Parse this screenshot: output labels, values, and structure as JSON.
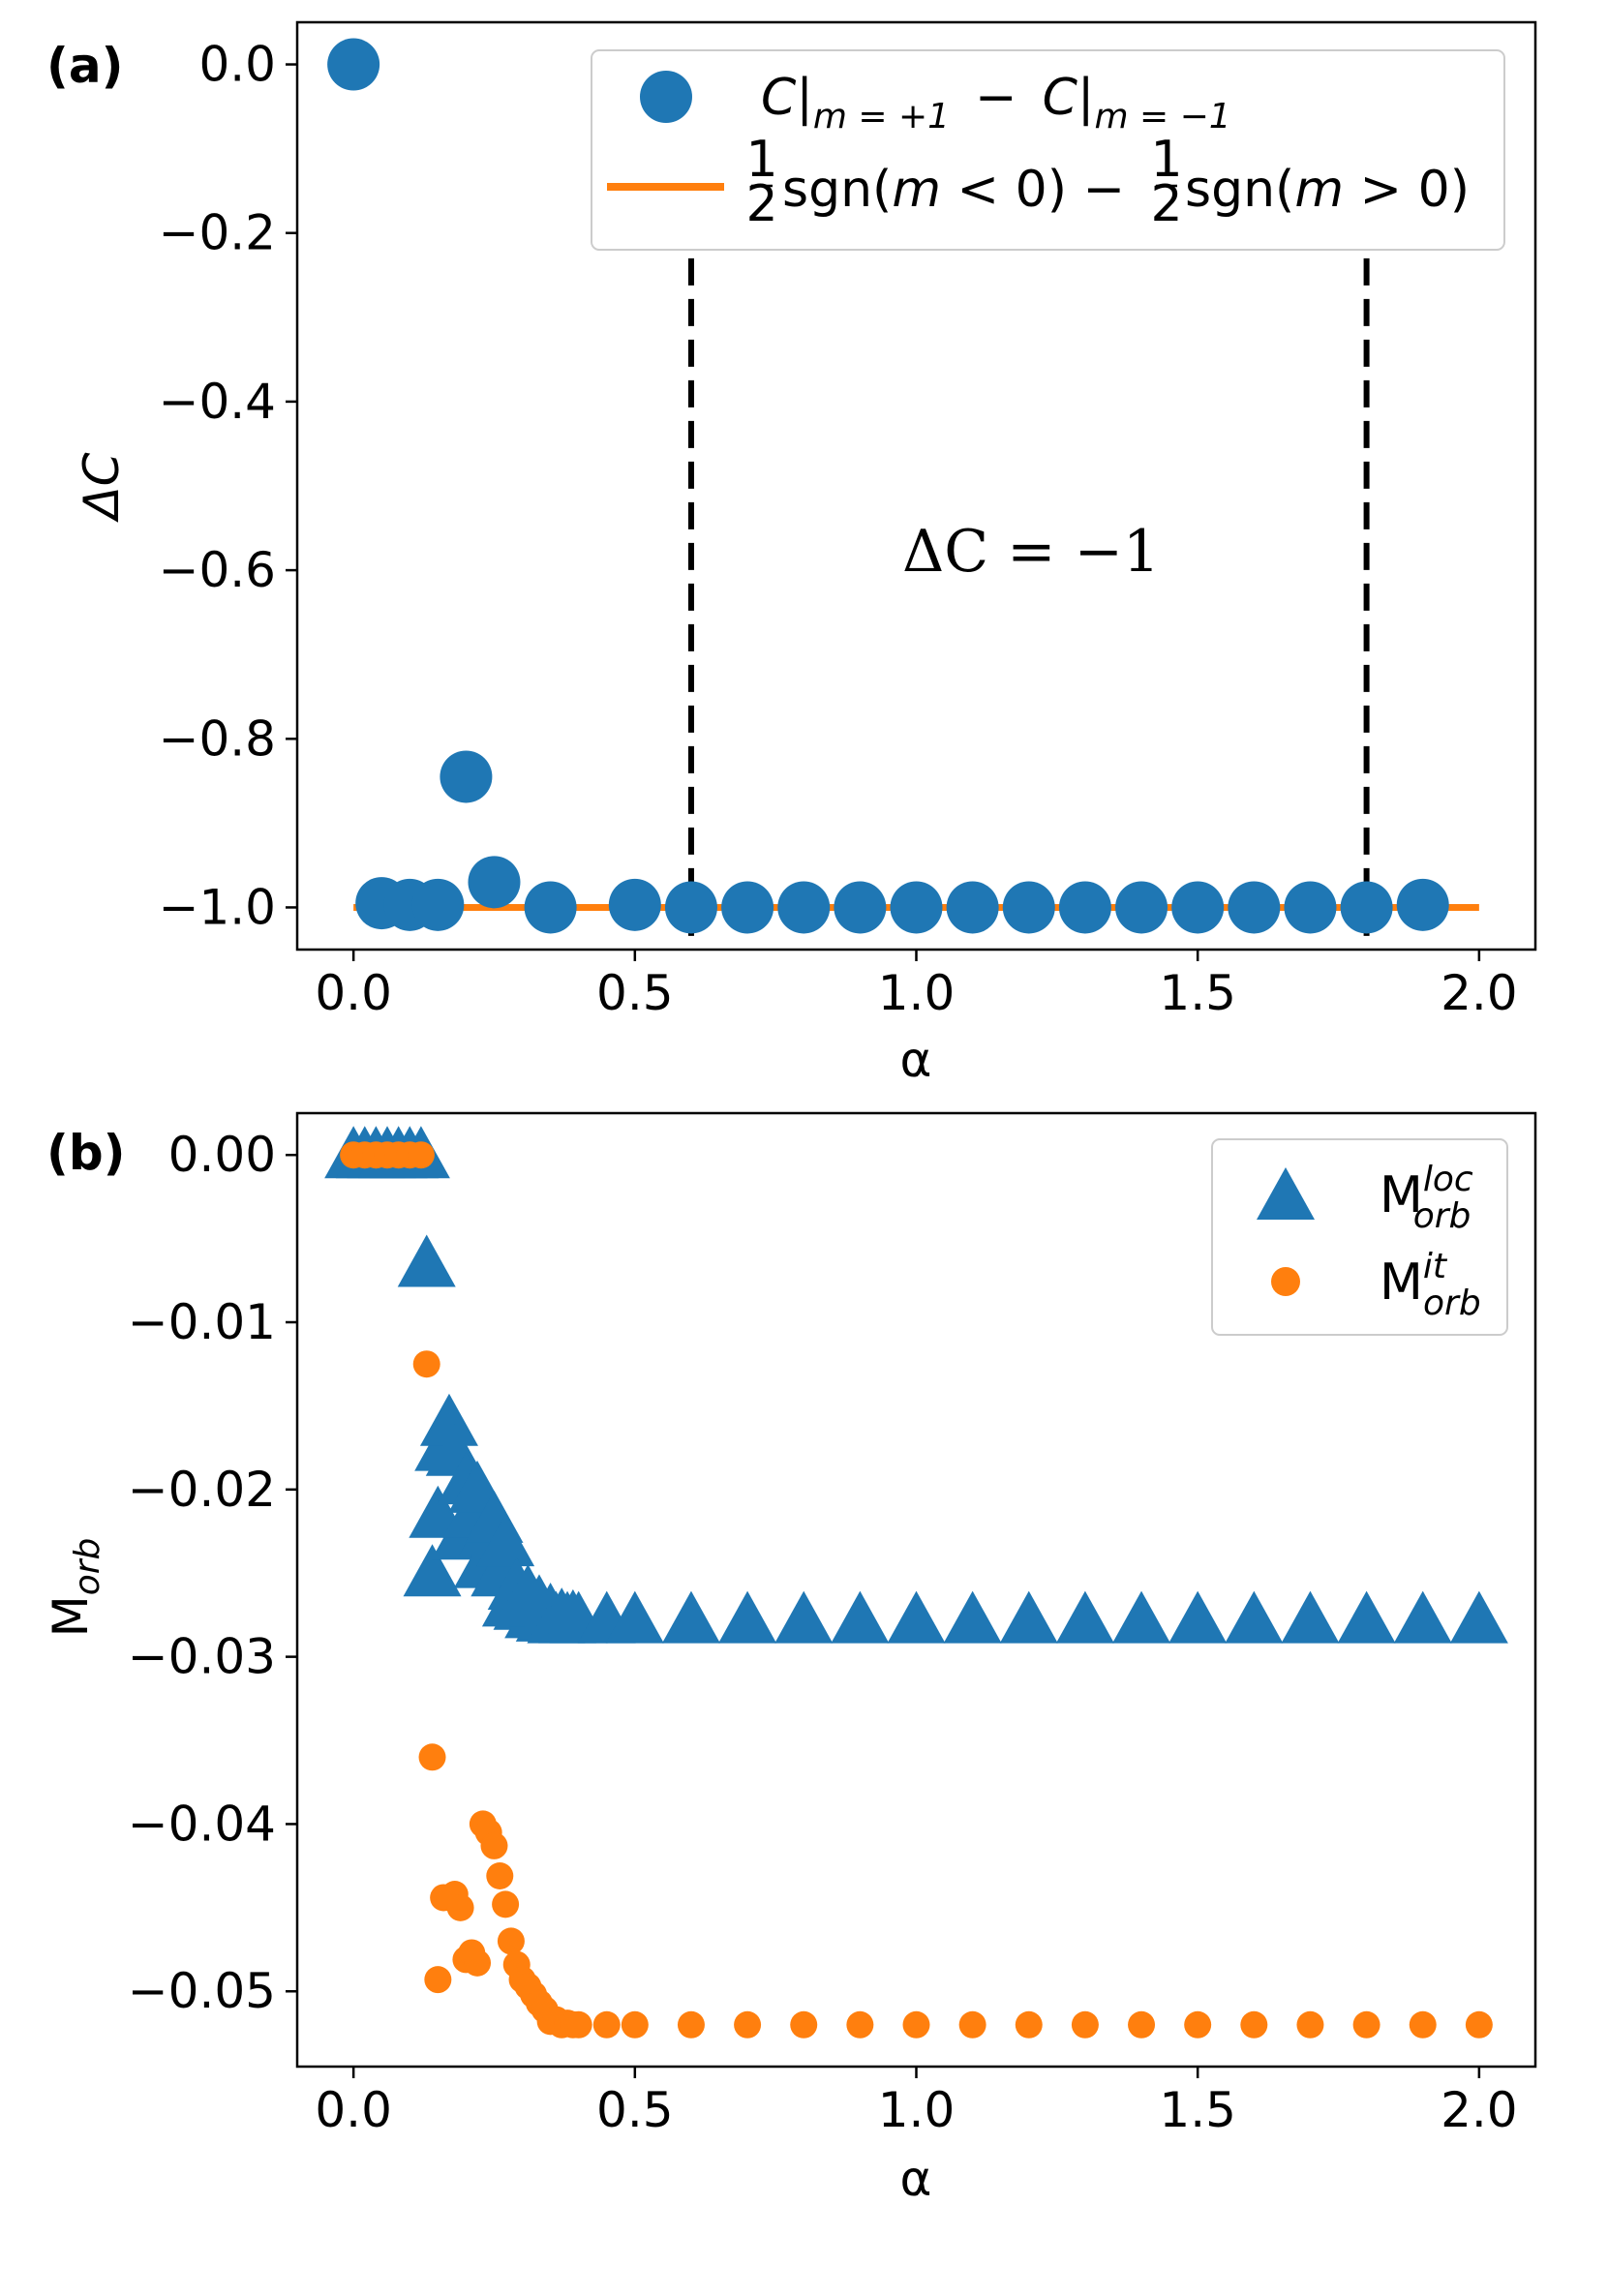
{
  "chart_data": [
    {
      "panel": "(a)",
      "type": "scatter",
      "xlabel": "α",
      "ylabel": "ΔC",
      "xlim": [
        -0.1,
        2.1
      ],
      "ylim": [
        -1.05,
        0.05
      ],
      "xticks": [
        0.0,
        0.5,
        1.0,
        1.5,
        2.0
      ],
      "xtick_labels": [
        "0.0",
        "0.5",
        "1.0",
        "1.5",
        "2.0"
      ],
      "yticks": [
        0.0,
        -0.2,
        -0.4,
        -0.6,
        -0.8,
        -1.0
      ],
      "ytick_labels": [
        "0.0",
        "−0.2",
        "−0.4",
        "−0.6",
        "−0.8",
        "−1.0"
      ],
      "series": [
        {
          "name": "C|m=+1 − C|m=−1",
          "color": "#1f77b4",
          "marker": "circle",
          "x": [
            0.0,
            0.05,
            0.1,
            0.15,
            0.2,
            0.25,
            0.35,
            0.5,
            0.6,
            0.7,
            0.8,
            0.9,
            1.0,
            1.1,
            1.2,
            1.3,
            1.4,
            1.5,
            1.6,
            1.7,
            1.8,
            1.9
          ],
          "y": [
            0.0,
            -0.995,
            -0.997,
            -0.997,
            -0.845,
            -0.97,
            -1.0,
            -0.997,
            -1.0,
            -1.0,
            -1.0,
            -1.0,
            -1.0,
            -1.0,
            -1.0,
            -1.0,
            -1.0,
            -1.0,
            -1.0,
            -1.0,
            -1.0,
            -0.997
          ]
        },
        {
          "name": "½sgn(m<0) − ½sgn(m>0)",
          "color": "#ff7f0e",
          "marker": "line",
          "x": [
            0.0,
            2.0
          ],
          "y": [
            -1.0,
            -1.0
          ]
        }
      ],
      "vlines": [
        0.6,
        1.8
      ],
      "annotation": "ΔC = −1",
      "legend_position": "top-right",
      "legend": {
        "entry1": {
          "c1": "C",
          "sub1": "m = +1",
          "minus": "−",
          "c2": "C",
          "sub2": "m = −1"
        },
        "entry2": {
          "half": "1",
          "den": "2",
          "sgn1": "sgn(",
          "m1": "m",
          "rest1": " < 0) − ",
          "sgn2": "sgn(",
          "m2": "m",
          "rest2": " > 0)"
        }
      }
    },
    {
      "panel": "(b)",
      "type": "scatter",
      "xlabel": "α",
      "ylabel": {
        "base": "M",
        "sub": "orb"
      },
      "xlim": [
        -0.1,
        2.1
      ],
      "ylim": [
        -0.0545,
        0.0025
      ],
      "xticks": [
        0.0,
        0.5,
        1.0,
        1.5,
        2.0
      ],
      "xtick_labels": [
        "0.0",
        "0.5",
        "1.0",
        "1.5",
        "2.0"
      ],
      "yticks": [
        0.0,
        -0.01,
        -0.02,
        -0.03,
        -0.04,
        -0.05
      ],
      "ytick_labels": [
        "0.00",
        "−0.01",
        "−0.02",
        "−0.03",
        "−0.04",
        "−0.05"
      ],
      "series": [
        {
          "name": "M_orb^loc",
          "legend_base": "M",
          "legend_sup": "loc",
          "legend_sub": "orb",
          "color": "#1f77b4",
          "marker": "triangle",
          "x": [
            0.0,
            0.02,
            0.04,
            0.06,
            0.08,
            0.1,
            0.12,
            0.13,
            0.14,
            0.15,
            0.16,
            0.17,
            0.18,
            0.19,
            0.2,
            0.21,
            0.22,
            0.23,
            0.24,
            0.25,
            0.26,
            0.27,
            0.28,
            0.29,
            0.3,
            0.31,
            0.32,
            0.33,
            0.34,
            0.35,
            0.36,
            0.37,
            0.38,
            0.39,
            0.4,
            0.45,
            0.5,
            0.6,
            0.7,
            0.8,
            0.9,
            1.0,
            1.1,
            1.2,
            1.3,
            1.4,
            1.5,
            1.6,
            1.7,
            1.8,
            1.9,
            2.0
          ],
          "y": [
            0.0,
            0.0,
            0.0,
            0.0,
            0.0,
            0.0,
            0.0,
            -0.0065,
            -0.025,
            -0.0215,
            -0.0175,
            -0.016,
            -0.0178,
            -0.0228,
            -0.0195,
            -0.0215,
            -0.02,
            -0.0245,
            -0.0225,
            -0.0218,
            -0.025,
            -0.0232,
            -0.0268,
            -0.0258,
            -0.027,
            -0.0262,
            -0.0275,
            -0.0268,
            -0.0277,
            -0.0273,
            -0.0278,
            -0.0276,
            -0.0278,
            -0.0277,
            -0.0278,
            -0.0278,
            -0.0278,
            -0.0278,
            -0.0278,
            -0.0278,
            -0.0278,
            -0.0278,
            -0.0278,
            -0.0278,
            -0.0278,
            -0.0278,
            -0.0278,
            -0.0278,
            -0.0278,
            -0.0278,
            -0.0278,
            -0.0278
          ]
        },
        {
          "name": "M_orb^it",
          "legend_base": "M",
          "legend_sup": "it",
          "legend_sub": "orb",
          "color": "#ff7f0e",
          "marker": "circle",
          "x": [
            0.0,
            0.02,
            0.04,
            0.06,
            0.08,
            0.1,
            0.12,
            0.13,
            0.14,
            0.15,
            0.16,
            0.17,
            0.18,
            0.19,
            0.2,
            0.21,
            0.22,
            0.23,
            0.24,
            0.25,
            0.26,
            0.27,
            0.28,
            0.29,
            0.3,
            0.31,
            0.32,
            0.33,
            0.34,
            0.35,
            0.36,
            0.37,
            0.38,
            0.39,
            0.4,
            0.45,
            0.5,
            0.6,
            0.7,
            0.8,
            0.9,
            1.0,
            1.1,
            1.2,
            1.3,
            1.4,
            1.5,
            1.6,
            1.7,
            1.8,
            1.9,
            2.0
          ],
          "y": [
            0.0,
            0.0,
            0.0,
            0.0,
            0.0,
            0.0,
            0.0,
            -0.0125,
            -0.036,
            -0.0493,
            -0.0444,
            -0.0444,
            -0.0442,
            -0.045,
            -0.0481,
            -0.0477,
            -0.0483,
            -0.04,
            -0.0405,
            -0.0413,
            -0.0431,
            -0.0448,
            -0.047,
            -0.0484,
            -0.0493,
            -0.0497,
            -0.0502,
            -0.0507,
            -0.0511,
            -0.0518,
            -0.0517,
            -0.052,
            -0.0519,
            -0.052,
            -0.052,
            -0.052,
            -0.052,
            -0.052,
            -0.052,
            -0.052,
            -0.052,
            -0.052,
            -0.052,
            -0.052,
            -0.052,
            -0.052,
            -0.052,
            -0.052,
            -0.052,
            -0.052,
            -0.052,
            -0.052
          ]
        }
      ],
      "legend_position": "top-right"
    }
  ]
}
